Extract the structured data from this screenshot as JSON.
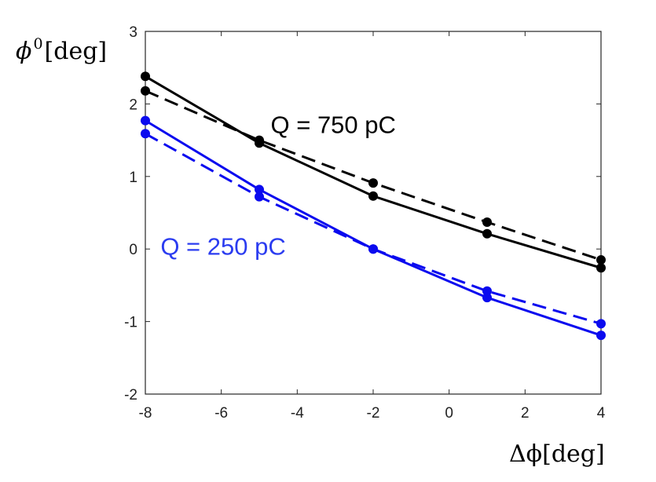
{
  "chart_data": {
    "type": "line",
    "title": "",
    "xlabel": "Δϕ[deg]",
    "ylabel": {
      "base": "ϕ",
      "sup": "0",
      "unit": "[deg]"
    },
    "xlim": [
      -8,
      4
    ],
    "ylim": [
      -2,
      3
    ],
    "xticks": [
      -8,
      -6,
      -4,
      -2,
      0,
      2,
      4
    ],
    "yticks": [
      -2,
      -1,
      0,
      1,
      2,
      3
    ],
    "grid": false,
    "legend": "none",
    "x": [
      -8,
      -5,
      -2,
      1,
      4
    ],
    "series": [
      {
        "name": "",
        "charge": "750",
        "style": "solid",
        "color": "#000000",
        "values": [
          2.38,
          1.46,
          0.73,
          0.21,
          -0.26
        ]
      },
      {
        "name": "",
        "charge": "750",
        "style": "dashed",
        "color": "#000000",
        "values": [
          2.18,
          1.5,
          0.91,
          0.37,
          -0.15
        ]
      },
      {
        "name": "",
        "charge": "250",
        "style": "solid",
        "color": "#0a0aef",
        "values": [
          1.77,
          0.82,
          0.0,
          -0.67,
          -1.19
        ]
      },
      {
        "name": "",
        "charge": "250",
        "style": "dashed",
        "color": "#0a0aef",
        "values": [
          1.59,
          0.72,
          0.0,
          -0.58,
          -1.03
        ]
      }
    ],
    "annotations": [
      {
        "text": "Q = 750 pC",
        "color": "#000000",
        "x": -4.7,
        "y": 1.6
      },
      {
        "text": "Q = 250 pC",
        "color": "#2b3cf0",
        "x": -7.6,
        "y": -0.08
      }
    ]
  }
}
